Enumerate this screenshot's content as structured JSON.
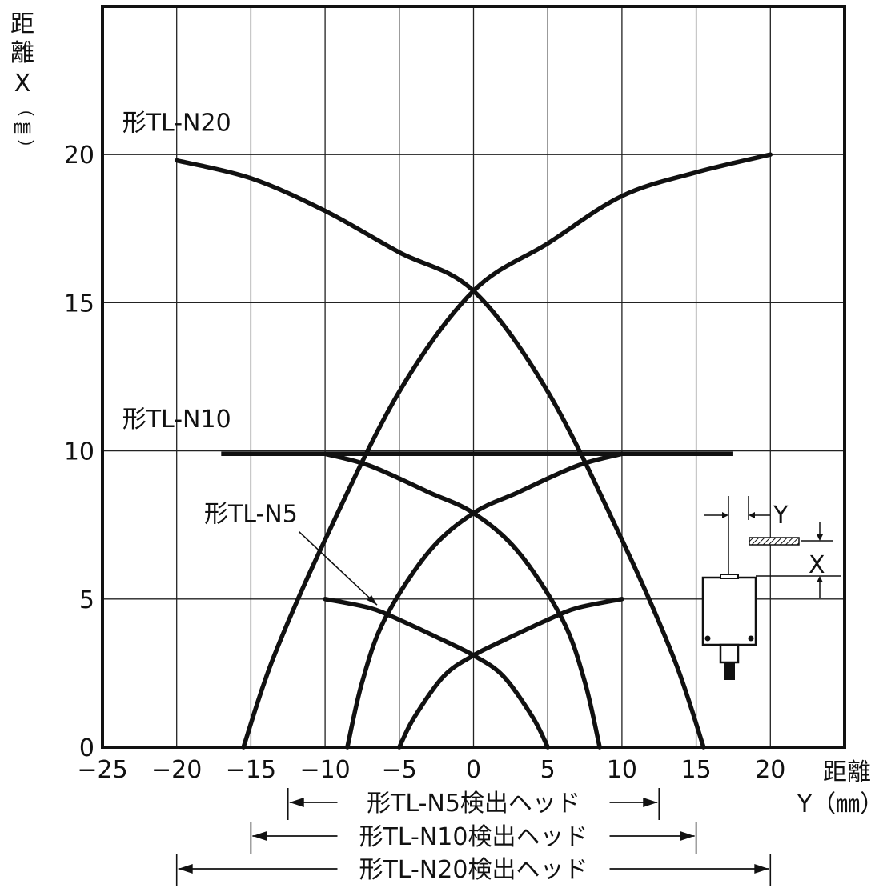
{
  "chart_data": {
    "type": "line",
    "y_axis_label": {
      "chars": [
        "距",
        "離",
        "X"
      ],
      "unit": "㎜"
    },
    "x_axis_label": {
      "name": "距離",
      "unit_line": "Y（㎜）"
    },
    "xlim": [
      -25,
      25
    ],
    "ylim": [
      0,
      25
    ],
    "x_ticks": [
      "−25",
      "−20",
      "−15",
      "−10",
      "−5",
      "0",
      "5",
      "10",
      "15",
      "20"
    ],
    "x_tick_values": [
      -25,
      -20,
      -15,
      -10,
      -5,
      0,
      5,
      10,
      15,
      20
    ],
    "y_ticks": [
      "0",
      "5",
      "10",
      "15",
      "20"
    ],
    "y_tick_values": [
      0,
      5,
      10,
      15,
      20
    ],
    "grid": true,
    "series": [
      {
        "name": "形TL-N20",
        "color": "#111111",
        "left": [
          [
            -20,
            19.8
          ],
          [
            -15,
            19.2
          ],
          [
            -10,
            18.1
          ],
          [
            -5,
            16.7
          ],
          [
            0,
            15.4
          ],
          [
            5,
            12.0
          ],
          [
            10,
            7.0
          ],
          [
            13.5,
            3.0
          ],
          [
            15.5,
            0
          ]
        ],
        "right": [
          [
            20,
            20.0
          ],
          [
            15,
            19.4
          ],
          [
            10,
            18.6
          ],
          [
            5,
            17.0
          ],
          [
            0,
            15.4
          ],
          [
            -5,
            12.0
          ],
          [
            -10,
            7.0
          ],
          [
            -13.5,
            3.0
          ],
          [
            -15.5,
            0
          ]
        ]
      },
      {
        "name": "形TL-N10",
        "color": "#111111",
        "flat": [
          [
            -17,
            9.9
          ],
          [
            -10,
            9.9
          ],
          [
            10,
            9.9
          ],
          [
            17.5,
            9.9
          ]
        ],
        "left": [
          [
            -10,
            9.9
          ],
          [
            -7,
            9.5
          ],
          [
            -3,
            8.6
          ],
          [
            0,
            7.9
          ],
          [
            3,
            6.6
          ],
          [
            6,
            4.3
          ],
          [
            7.5,
            2.2
          ],
          [
            8.5,
            0
          ]
        ],
        "right": [
          [
            10,
            9.9
          ],
          [
            7,
            9.5
          ],
          [
            3,
            8.6
          ],
          [
            0,
            7.9
          ],
          [
            -3,
            6.6
          ],
          [
            -6,
            4.3
          ],
          [
            -7.5,
            2.2
          ],
          [
            -8.5,
            0
          ]
        ]
      },
      {
        "name": "形TL-N5",
        "color": "#111111",
        "left": [
          [
            -10,
            5.0
          ],
          [
            -7,
            4.7
          ],
          [
            -5,
            4.3
          ],
          [
            -2,
            3.6
          ],
          [
            0,
            3.1
          ],
          [
            2,
            2.4
          ],
          [
            4,
            1.0
          ],
          [
            5,
            0
          ]
        ],
        "right": [
          [
            10,
            5.0
          ],
          [
            7,
            4.7
          ],
          [
            5,
            4.3
          ],
          [
            2,
            3.6
          ],
          [
            0,
            3.1
          ],
          [
            -2,
            2.4
          ],
          [
            -4,
            1.0
          ],
          [
            -5,
            0
          ]
        ]
      }
    ],
    "annotations": [
      {
        "text": "形TL-N20",
        "at": [
          -20,
          20.8
        ]
      },
      {
        "text": "形TL-N10",
        "at": [
          -20,
          10.8
        ]
      },
      {
        "text": "形TL-N5",
        "at": [
          -15,
          7.6
        ],
        "arrow_to": [
          -6.5,
          4.8
        ]
      }
    ],
    "range_bars": [
      {
        "label": "形TL-N5検出ヘッド",
        "from": -12.5,
        "to": 12.5
      },
      {
        "label": "形TL-N10検出ヘッド",
        "from": -15,
        "to": 15
      },
      {
        "label": "形TL-N20検出ヘッド",
        "from": -20,
        "to": 20
      }
    ],
    "inset_labels": {
      "y": "Y",
      "x": "X"
    }
  }
}
